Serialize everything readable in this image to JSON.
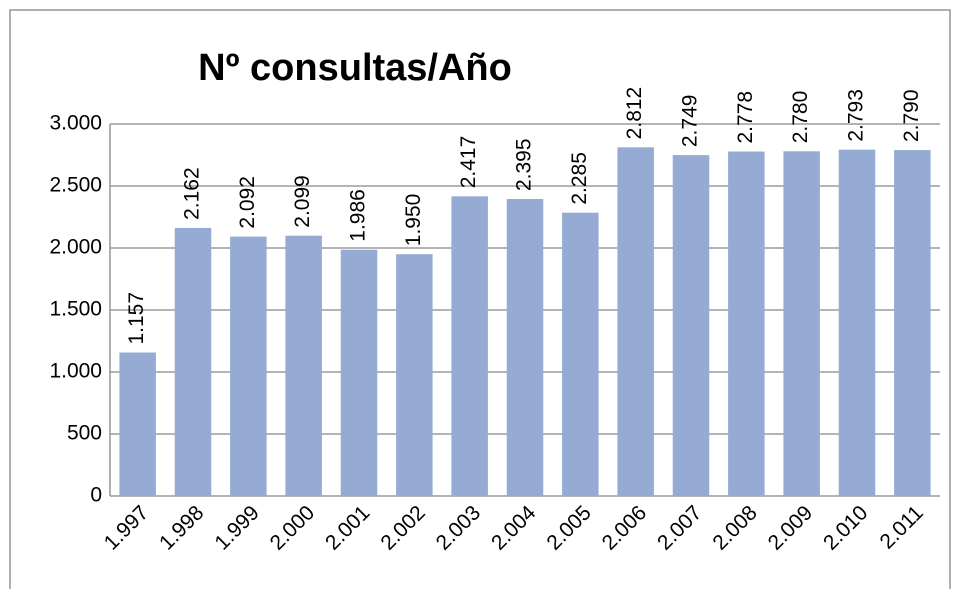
{
  "chart_data": {
    "type": "bar",
    "title": "Nº consultas/Año",
    "categories": [
      "1.997",
      "1.998",
      "1.999",
      "2.000",
      "2.001",
      "2.002",
      "2.003",
      "2.004",
      "2.005",
      "2.006",
      "2.007",
      "2.008",
      "2.009",
      "2.010",
      "2.011"
    ],
    "values": [
      1157,
      2162,
      2092,
      2099,
      1986,
      1950,
      2417,
      2395,
      2285,
      2812,
      2749,
      2778,
      2780,
      2793,
      2790
    ],
    "value_labels": [
      "1.157",
      "2.162",
      "2.092",
      "2.099",
      "1.986",
      "1.950",
      "2.417",
      "2.395",
      "2.285",
      "2.812",
      "2.749",
      "2.778",
      "2.780",
      "2.793",
      "2.790"
    ],
    "color": "#95abd4",
    "ylim": [
      0,
      3000
    ],
    "yticks": [
      0,
      500,
      {
        "value": 1000,
        "label": "1.000"
      },
      {
        "value": 1500,
        "label": "1.500"
      },
      {
        "value": 2000,
        "label": "2.000"
      },
      {
        "value": 2500,
        "label": "2.500"
      },
      {
        "value": 3000,
        "label": "3.000"
      }
    ],
    "grid": true
  }
}
